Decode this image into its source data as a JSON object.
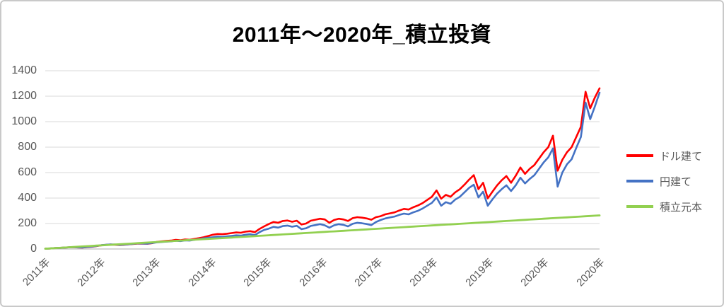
{
  "title": "2011年～2020年_積立投資",
  "chart_data": {
    "type": "line",
    "title": "2011年～2020年_積立投資",
    "x_unit": "month",
    "x_range": [
      "2011-01",
      "2020-12"
    ],
    "x_tick_labels": [
      "2011年",
      "2012年",
      "2013年",
      "2014年",
      "2015年",
      "2016年",
      "2017年",
      "2018年",
      "2019年",
      "2020年",
      "2020年"
    ],
    "y_ticks": [
      0,
      200,
      400,
      600,
      800,
      1000,
      1200,
      1400
    ],
    "ylim": [
      0,
      1400
    ],
    "grid": "horizontal",
    "legend_position": "right",
    "axis_label_color": "#595959",
    "gridline_color": "#d9d9d9",
    "series": [
      {
        "name": "ドル建て",
        "color": "#ff0000",
        "values": [
          2,
          4,
          7,
          9,
          11,
          13,
          15,
          12,
          11,
          15,
          18,
          23,
          29,
          32,
          35,
          34,
          31,
          34,
          37,
          40,
          43,
          42,
          41,
          46,
          56,
          60,
          64,
          66,
          72,
          69,
          75,
          73,
          79,
          85,
          92,
          102,
          112,
          118,
          116,
          120,
          125,
          130,
          128,
          136,
          140,
          132,
          158,
          178,
          196,
          212,
          206,
          220,
          224,
          214,
          222,
          192,
          200,
          222,
          230,
          238,
          232,
          206,
          228,
          238,
          232,
          220,
          242,
          250,
          246,
          240,
          230,
          250,
          258,
          272,
          280,
          288,
          302,
          315,
          310,
          328,
          342,
          360,
          385,
          410,
          460,
          395,
          425,
          410,
          445,
          470,
          505,
          545,
          580,
          470,
          520,
          398,
          450,
          500,
          540,
          573,
          520,
          575,
          640,
          590,
          630,
          660,
          710,
          760,
          800,
          890,
          615,
          700,
          760,
          800,
          880,
          960,
          1235,
          1105,
          1190,
          1262
        ]
      },
      {
        "name": "円建て",
        "color": "#4472c4",
        "values": [
          2,
          4,
          7,
          9,
          11,
          13,
          15,
          13,
          12,
          16,
          19,
          24,
          30,
          33,
          36,
          35,
          32,
          35,
          38,
          41,
          44,
          43,
          42,
          48,
          52,
          55,
          58,
          60,
          65,
          62,
          68,
          66,
          72,
          77,
          84,
          88,
          92,
          97,
          95,
          99,
          103,
          107,
          105,
          112,
          116,
          109,
          132,
          150,
          160,
          174,
          168,
          180,
          184,
          175,
          182,
          156,
          163,
          181,
          188,
          195,
          186,
          167,
          186,
          195,
          190,
          178,
          198,
          206,
          202,
          196,
          188,
          212,
          228,
          240,
          248,
          255,
          268,
          278,
          272,
          288,
          300,
          318,
          340,
          362,
          405,
          340,
          368,
          355,
          388,
          410,
          445,
          480,
          505,
          405,
          450,
          340,
          390,
          435,
          470,
          500,
          455,
          500,
          560,
          515,
          550,
          580,
          630,
          680,
          720,
          790,
          490,
          600,
          665,
          705,
          795,
          880,
          1150,
          1020,
          1120,
          1228
        ]
      },
      {
        "name": "積立元本",
        "color": "#92d050",
        "values": [
          2.2,
          4.4,
          6.6,
          8.8,
          11,
          13.2,
          15.4,
          17.6,
          19.8,
          22,
          24.2,
          26.4,
          28.6,
          30.8,
          33,
          35.2,
          37.4,
          39.6,
          41.8,
          44,
          46.2,
          48.4,
          50.6,
          52.8,
          55,
          57.2,
          59.4,
          61.6,
          63.8,
          66,
          68.2,
          70.4,
          72.6,
          74.8,
          77,
          79.2,
          81.4,
          83.6,
          85.8,
          88,
          90.2,
          92.4,
          94.6,
          96.8,
          99,
          101.2,
          103.4,
          105.6,
          107.8,
          110,
          112.2,
          114.4,
          116.6,
          118.8,
          121,
          123.2,
          125.4,
          127.6,
          129.8,
          132,
          134.2,
          136.4,
          138.6,
          140.8,
          143,
          145.2,
          147.4,
          149.6,
          151.8,
          154,
          156.2,
          158.4,
          160.6,
          162.8,
          165,
          167.2,
          169.4,
          171.6,
          173.8,
          176,
          178.2,
          180.4,
          182.6,
          184.8,
          187,
          189.2,
          191.4,
          193.6,
          195.8,
          198,
          200.2,
          202.4,
          204.6,
          206.8,
          209,
          211.2,
          213.4,
          215.6,
          217.8,
          220,
          222.2,
          224.4,
          226.6,
          228.8,
          231,
          233.2,
          235.4,
          237.6,
          239.8,
          242,
          244.2,
          246.4,
          248.6,
          250.8,
          253,
          255.2,
          257.4,
          259.6,
          261.8,
          264
        ]
      }
    ]
  }
}
